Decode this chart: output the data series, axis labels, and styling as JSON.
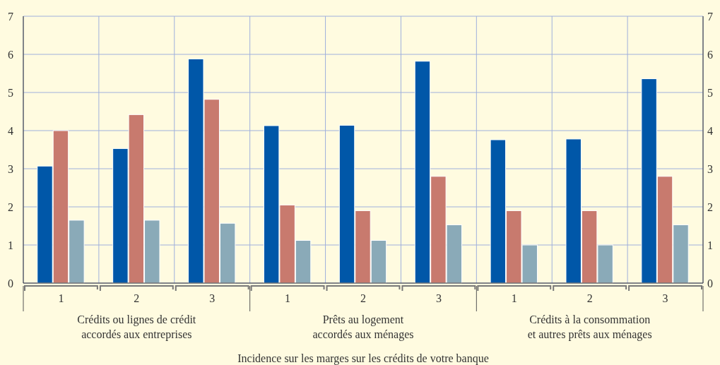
{
  "chart_data": {
    "type": "bar",
    "xlabel": "Incidence sur les marges sur les crédits de votre banque",
    "categories": [
      "1",
      "2",
      "3",
      "1",
      "2",
      "3",
      "1",
      "2",
      "3"
    ],
    "annotations": [
      "Crédits ou lignes de crédit\naccordés aux entreprises",
      "Prêts au logement\naccordés aux ménages",
      "Crédits à la consommation\net autres prêts aux ménages"
    ],
    "series": [
      {
        "color": "#0057a8",
        "values": [
          3.07,
          3.53,
          5.88,
          4.13,
          4.14,
          5.82,
          3.76,
          3.78,
          5.36
        ]
      },
      {
        "color": "#c87a6e",
        "values": [
          4.0,
          4.42,
          4.82,
          2.05,
          1.9,
          2.8,
          1.9,
          1.9,
          2.8
        ]
      },
      {
        "color": "#8aaab8",
        "values": [
          1.65,
          1.65,
          1.57,
          1.12,
          1.12,
          1.53,
          1.0,
          1.0,
          1.53
        ]
      }
    ],
    "ylim": [
      0,
      7
    ],
    "yticks": [
      0,
      1,
      2,
      3,
      4,
      5,
      6,
      7
    ],
    "y2lim": [
      0,
      7
    ],
    "y2ticks": [
      0,
      1,
      2,
      3,
      4,
      5,
      6,
      7
    ],
    "grid": true
  }
}
